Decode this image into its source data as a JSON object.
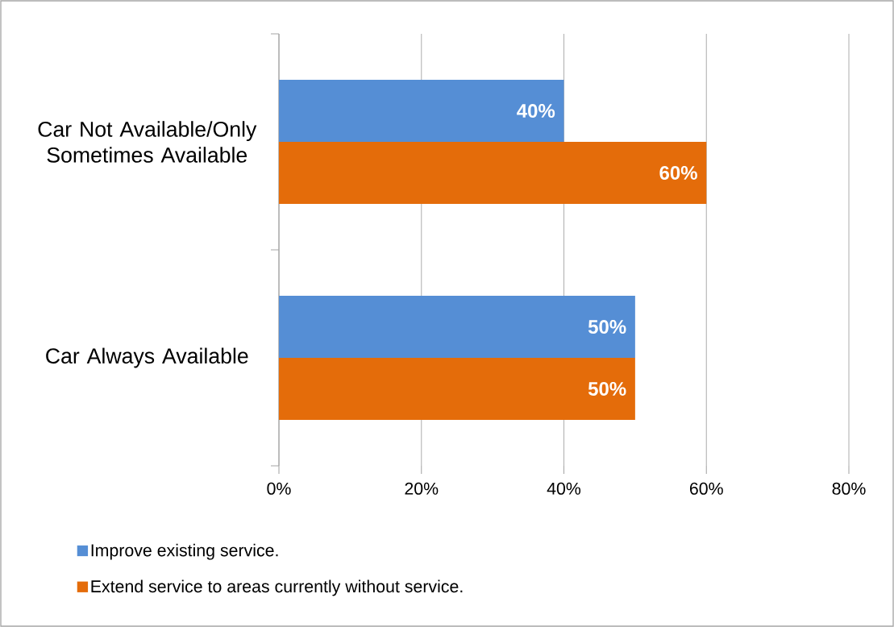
{
  "chart_data": {
    "type": "bar",
    "orientation": "horizontal",
    "categories": [
      "Car Not Available/Only Sometimes Available",
      "Car Always Available"
    ],
    "series": [
      {
        "name": "Improve existing service.",
        "color": "#558ed5",
        "values": [
          40,
          50
        ],
        "value_labels": [
          "40%",
          "50%"
        ]
      },
      {
        "name": "Extend service to areas currently without service.",
        "color": "#e46c0a",
        "values": [
          60,
          50
        ],
        "value_labels": [
          "60%",
          "50%"
        ]
      }
    ],
    "xlim": [
      0,
      80
    ],
    "xticks": [
      {
        "value": 0,
        "label": "0%"
      },
      {
        "value": 20,
        "label": "20%"
      },
      {
        "value": 40,
        "label": "40%"
      },
      {
        "value": 60,
        "label": "60%"
      },
      {
        "value": 80,
        "label": "80%"
      }
    ],
    "grid": "x",
    "legend": "bottom"
  }
}
